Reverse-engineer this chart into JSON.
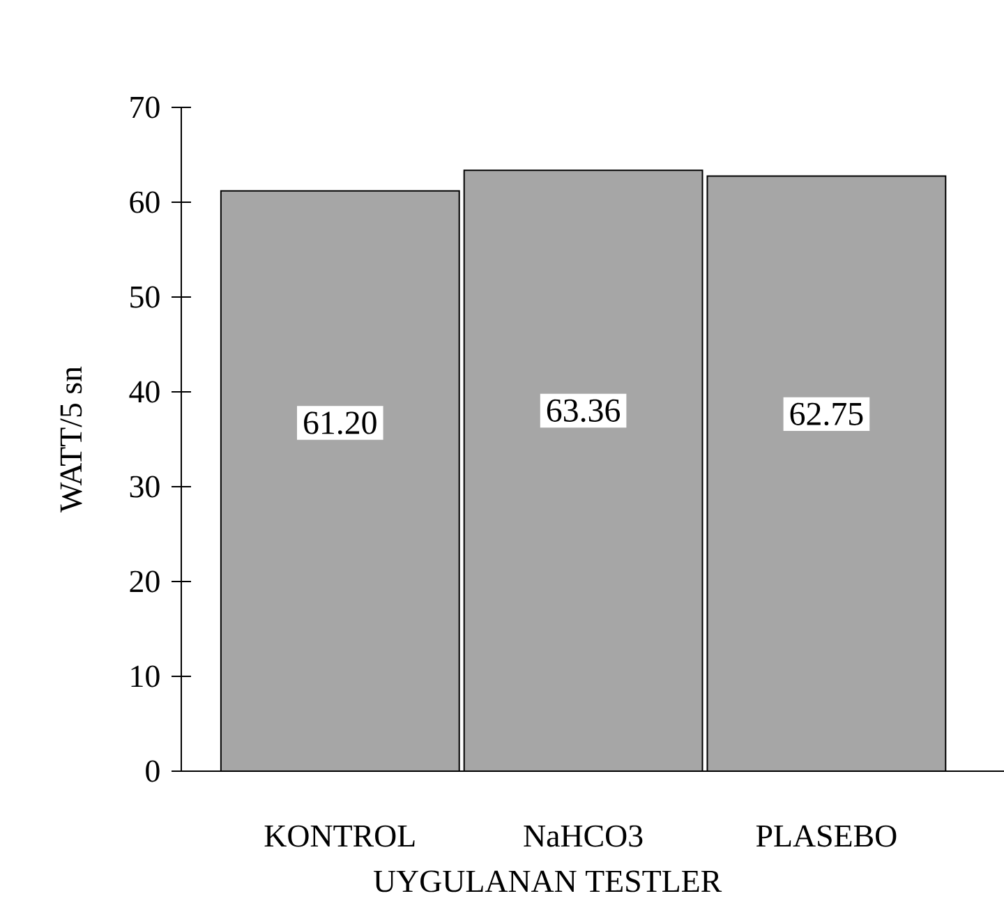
{
  "chart_data": {
    "type": "bar",
    "xlabel": "UYGULANAN TESTLER",
    "ylabel": "WATT/5 sn",
    "categories": [
      "KONTROL",
      "NaHCO3",
      "PLASEBO"
    ],
    "values": [
      61.2,
      63.36,
      62.75
    ],
    "value_labels": [
      "61.20",
      "63.36",
      "62.75"
    ],
    "color": "#a6a6a6",
    "ylim": [
      0,
      70
    ],
    "yticks": [
      0,
      10,
      20,
      30,
      40,
      50,
      60,
      70
    ],
    "grid": false
  }
}
